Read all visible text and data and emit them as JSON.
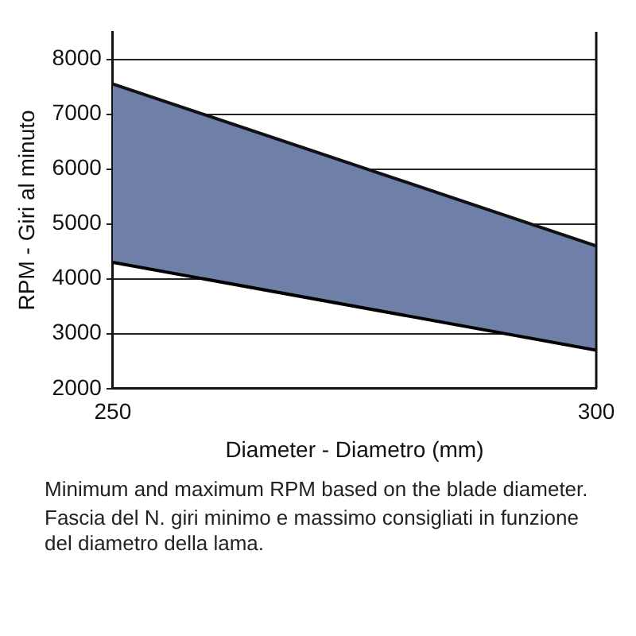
{
  "chart_data": {
    "type": "area",
    "xlabel": "Diameter - Diametro (mm)",
    "ylabel": "RPM - Giri al minuto",
    "x": [
      250,
      300
    ],
    "series": [
      {
        "type": "line",
        "color": "#000000",
        "values": [
          4300,
          2700
        ]
      },
      {
        "color": "#6e80a8",
        "values": [
          7550,
          4600
        ]
      }
    ],
    "xlim": [
      250,
      300
    ],
    "xticks": [
      250,
      300
    ],
    "ylim": [
      2000,
      8500
    ],
    "yticks": [
      2000,
      3000,
      4000,
      5000,
      6000,
      7000,
      8000
    ],
    "grid": "y",
    "legend": false,
    "annotations": [
      "Minimum and maximum RPM based on the blade diameter.",
      "Fascia del N. giri minimo e massimo consigliati in funzione del diametro della lama."
    ]
  }
}
